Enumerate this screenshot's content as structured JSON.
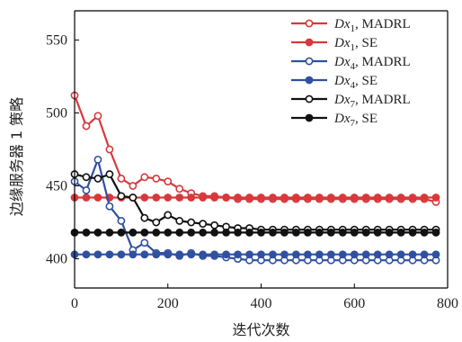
{
  "chart_data": {
    "type": "line",
    "xlabel": "迭代次数",
    "ylabel": "边缘服务器 1 策略",
    "xlim": [
      0,
      800
    ],
    "ylim": [
      380,
      570
    ],
    "xticks": [
      0,
      200,
      400,
      600,
      800
    ],
    "yticks": [
      400,
      450,
      500,
      550
    ],
    "grid": false,
    "legend_position": "top-right",
    "series": [
      {
        "name_var": "Dx",
        "name_sub": "1",
        "name_method": ", MADRL",
        "color": "#d7393b",
        "marker": "open-circle",
        "x": [
          0,
          25,
          50,
          75,
          100,
          125,
          150,
          175,
          200,
          225,
          250,
          275,
          300,
          325,
          350,
          375,
          400,
          425,
          450,
          475,
          500,
          525,
          550,
          575,
          600,
          625,
          650,
          675,
          700,
          725,
          750,
          775
        ],
        "y": [
          512,
          491,
          498,
          475,
          455,
          450,
          456,
          455,
          453,
          448,
          445,
          443,
          443,
          442,
          441,
          441,
          441,
          441,
          441,
          441,
          441,
          441,
          441,
          441,
          441,
          441,
          441,
          441,
          441,
          441,
          441,
          439
        ]
      },
      {
        "name_var": "Dx",
        "name_sub": "1",
        "name_method": ", SE",
        "color": "#d7393b",
        "marker": "solid-circle",
        "x": [
          0,
          25,
          50,
          75,
          100,
          125,
          150,
          175,
          200,
          225,
          250,
          275,
          300,
          325,
          350,
          375,
          400,
          425,
          450,
          475,
          500,
          525,
          550,
          575,
          600,
          625,
          650,
          675,
          700,
          725,
          750,
          775
        ],
        "y": [
          442,
          442,
          442,
          442,
          442,
          442,
          442,
          442,
          442,
          442,
          442,
          442,
          442,
          442,
          442,
          442,
          442,
          442,
          442,
          442,
          442,
          442,
          442,
          442,
          442,
          442,
          442,
          442,
          442,
          442,
          442,
          442
        ]
      },
      {
        "name_var": "Dx",
        "name_sub": "4",
        "name_method": ", MADRL",
        "color": "#3050a0",
        "marker": "open-circle",
        "x": [
          0,
          25,
          50,
          75,
          100,
          125,
          150,
          175,
          200,
          225,
          250,
          275,
          300,
          325,
          350,
          375,
          400,
          425,
          450,
          475,
          500,
          525,
          550,
          575,
          600,
          625,
          650,
          675,
          700,
          725,
          750,
          775
        ],
        "y": [
          453,
          447,
          468,
          436,
          426,
          406,
          411,
          404,
          404,
          402,
          404,
          402,
          402,
          401,
          400,
          399,
          399,
          399,
          399,
          399,
          399,
          399,
          399,
          399,
          399,
          399,
          399,
          399,
          399,
          399,
          399,
          399
        ]
      },
      {
        "name_var": "Dx",
        "name_sub": "4",
        "name_method": ", SE",
        "color": "#3050a0",
        "marker": "solid-circle",
        "x": [
          0,
          25,
          50,
          75,
          100,
          125,
          150,
          175,
          200,
          225,
          250,
          275,
          300,
          325,
          350,
          375,
          400,
          425,
          450,
          475,
          500,
          525,
          550,
          575,
          600,
          625,
          650,
          675,
          700,
          725,
          750,
          775
        ],
        "y": [
          403,
          403,
          403,
          403,
          403,
          403,
          403,
          403,
          403,
          403,
          403,
          403,
          403,
          403,
          403,
          403,
          403,
          403,
          403,
          403,
          403,
          403,
          403,
          403,
          403,
          403,
          403,
          403,
          403,
          403,
          403,
          403
        ]
      },
      {
        "name_var": "Dx",
        "name_sub": "7",
        "name_method": ", MADRL",
        "color": "#111111",
        "marker": "open-circle",
        "x": [
          0,
          25,
          50,
          75,
          100,
          125,
          150,
          175,
          200,
          225,
          250,
          275,
          300,
          325,
          350,
          375,
          400,
          425,
          450,
          475,
          500,
          525,
          550,
          575,
          600,
          625,
          650,
          675,
          700,
          725,
          750,
          775
        ],
        "y": [
          458,
          456,
          455,
          458,
          443,
          442,
          428,
          425,
          430,
          426,
          425,
          424,
          423,
          422,
          421,
          421,
          420,
          420,
          420,
          420,
          420,
          420,
          420,
          420,
          420,
          420,
          420,
          420,
          420,
          420,
          420,
          420
        ]
      },
      {
        "name_var": "Dx",
        "name_sub": "7",
        "name_method": ", SE",
        "color": "#111111",
        "marker": "solid-circle",
        "x": [
          0,
          25,
          50,
          75,
          100,
          125,
          150,
          175,
          200,
          225,
          250,
          275,
          300,
          325,
          350,
          375,
          400,
          425,
          450,
          475,
          500,
          525,
          550,
          575,
          600,
          625,
          650,
          675,
          700,
          725,
          750,
          775
        ],
        "y": [
          418,
          418,
          418,
          418,
          418,
          418,
          418,
          418,
          418,
          418,
          418,
          418,
          418,
          418,
          418,
          418,
          418,
          418,
          418,
          418,
          418,
          418,
          418,
          418,
          418,
          418,
          418,
          418,
          418,
          418,
          418,
          418
        ]
      }
    ]
  }
}
